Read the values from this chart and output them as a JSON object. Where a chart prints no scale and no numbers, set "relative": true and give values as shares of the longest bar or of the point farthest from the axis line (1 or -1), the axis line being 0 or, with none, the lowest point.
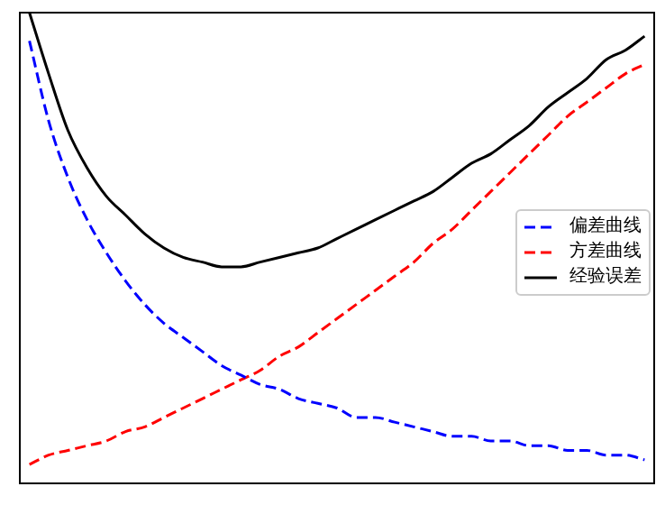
{
  "chart_data": {
    "type": "line",
    "relative": true,
    "legend": "right",
    "categories": [
      null,
      null,
      null,
      null,
      null,
      null,
      null,
      null,
      null,
      null,
      null,
      null,
      null,
      null,
      null,
      null,
      null,
      null,
      null,
      null,
      null,
      null,
      null,
      null,
      null,
      null,
      null,
      null,
      null,
      null,
      null,
      null,
      null
    ],
    "series": [
      {
        "name": "偏差曲线",
        "color": "#0000ff",
        "line_style": "dashed",
        "values": [
          0.94,
          0.77,
          0.65,
          0.56,
          0.49,
          0.43,
          0.38,
          0.34,
          0.31,
          0.28,
          0.25,
          0.23,
          0.21,
          0.2,
          0.18,
          0.17,
          0.16,
          0.14,
          0.14,
          0.13,
          0.12,
          0.11,
          0.1,
          0.1,
          0.09,
          0.09,
          0.08,
          0.08,
          0.07,
          0.07,
          0.06,
          0.06,
          0.05
        ]
      },
      {
        "name": "方差曲线",
        "color": "#ff0000",
        "line_style": "dashed",
        "values": [
          0.04,
          0.06,
          0.07,
          0.08,
          0.09,
          0.11,
          0.12,
          0.14,
          0.16,
          0.18,
          0.2,
          0.22,
          0.24,
          0.27,
          0.29,
          0.32,
          0.35,
          0.38,
          0.41,
          0.44,
          0.47,
          0.51,
          0.54,
          0.58,
          0.62,
          0.66,
          0.7,
          0.74,
          0.78,
          0.81,
          0.84,
          0.87,
          0.89
        ]
      },
      {
        "name": "经验误差",
        "color": "#000000",
        "line_style": "solid",
        "values": [
          1.0,
          0.87,
          0.75,
          0.67,
          0.61,
          0.57,
          0.53,
          0.5,
          0.48,
          0.47,
          0.46,
          0.46,
          0.47,
          0.48,
          0.49,
          0.5,
          0.52,
          0.54,
          0.56,
          0.58,
          0.6,
          0.62,
          0.65,
          0.68,
          0.7,
          0.73,
          0.76,
          0.8,
          0.83,
          0.86,
          0.9,
          0.92,
          0.95
        ]
      }
    ]
  }
}
